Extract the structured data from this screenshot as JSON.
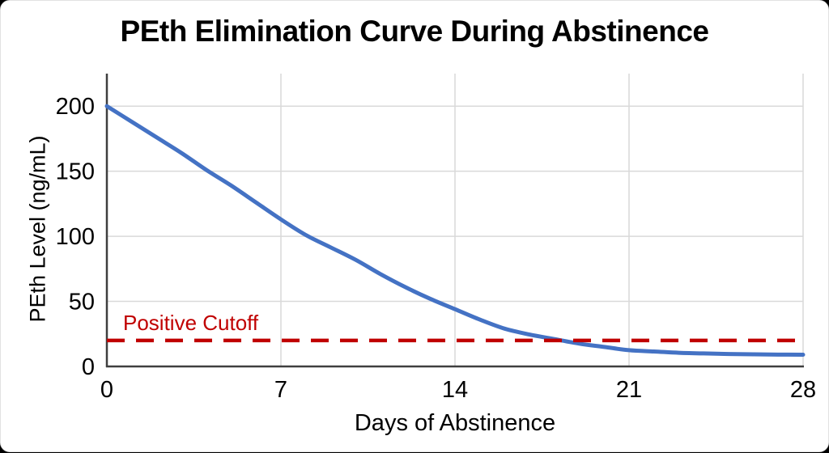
{
  "chart_data": {
    "type": "line",
    "title": "PEth Elimination Curve During Abstinence",
    "xlabel": "Days of Abstinence",
    "ylabel": "PEth Level (ng/mL)",
    "xlim": [
      0,
      28
    ],
    "ylim": [
      0,
      225
    ],
    "xticks": [
      0,
      7,
      14,
      21,
      28
    ],
    "yticks": [
      0,
      50,
      100,
      150,
      200
    ],
    "grid": true,
    "legend": "none",
    "series": [
      {
        "name": "PEth level",
        "color": "#4472c4",
        "style": "solid",
        "x": [
          0,
          1,
          2,
          3,
          4,
          5,
          6,
          7,
          8,
          9,
          10,
          11,
          12,
          13,
          14,
          15,
          16,
          17,
          18,
          19,
          20,
          21,
          22,
          23,
          24,
          25,
          26,
          27,
          28
        ],
        "y": [
          200,
          188,
          176,
          164,
          151,
          139,
          126,
          113,
          101,
          91.5,
          82,
          71,
          61,
          52,
          44,
          36,
          29,
          24.5,
          21,
          17.5,
          15,
          12.5,
          11.5,
          10.5,
          10,
          9.6,
          9.3,
          9.1,
          9
        ]
      }
    ],
    "reference_line": {
      "label": "Positive Cutoff",
      "value": 20,
      "color": "#c00000",
      "style": "dashed"
    },
    "colors": {
      "gridline": "#d9d9d9",
      "axis": "#3f3f3f",
      "text": "#000000",
      "background": "#ffffff"
    }
  }
}
